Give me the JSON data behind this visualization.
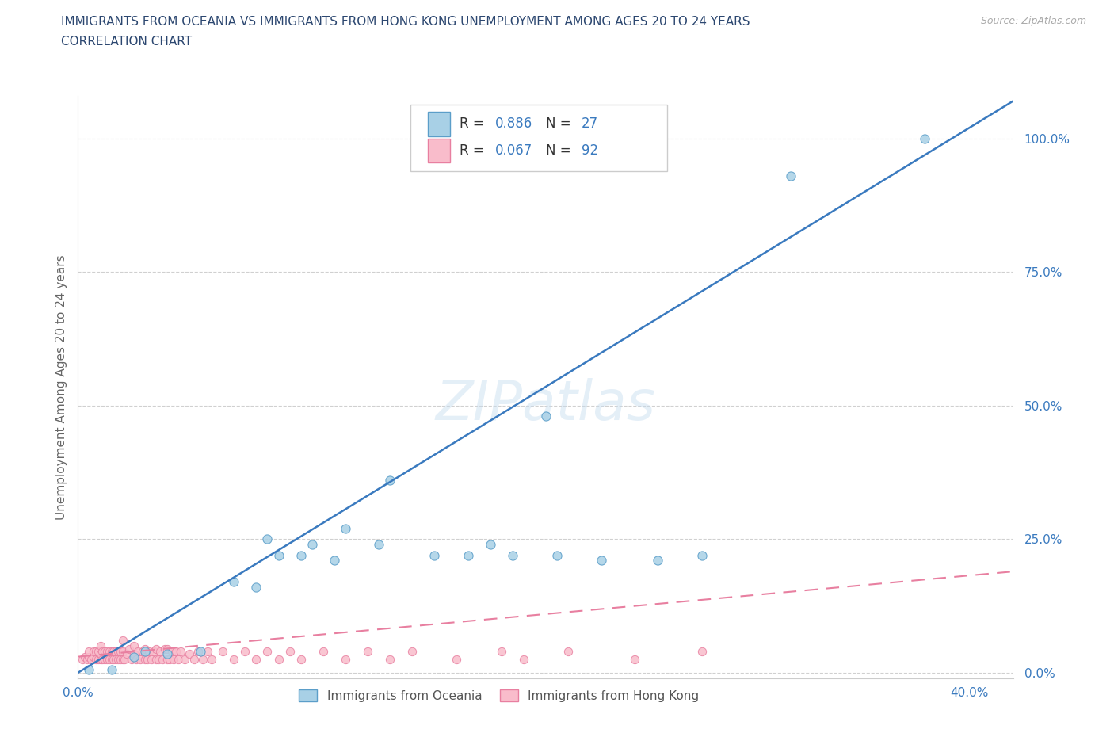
{
  "title_line1": "IMMIGRANTS FROM OCEANIA VS IMMIGRANTS FROM HONG KONG UNEMPLOYMENT AMONG AGES 20 TO 24 YEARS",
  "title_line2": "CORRELATION CHART",
  "source_text": "Source: ZipAtlas.com",
  "ylabel": "Unemployment Among Ages 20 to 24 years",
  "xlim": [
    0.0,
    0.42
  ],
  "ylim": [
    -0.01,
    1.08
  ],
  "yticks": [
    0.0,
    0.25,
    0.5,
    0.75,
    1.0
  ],
  "ytick_labels": [
    "0.0%",
    "25.0%",
    "50.0%",
    "75.0%",
    "100.0%"
  ],
  "xticks": [
    0.0,
    0.1,
    0.2,
    0.3,
    0.4
  ],
  "xtick_labels": [
    "0.0%",
    "",
    "",
    "",
    "40.0%"
  ],
  "oceania_color": "#a8d0e6",
  "hk_color": "#f9bccb",
  "oceania_edge_color": "#5b9ec9",
  "hk_edge_color": "#e87fa0",
  "oceania_line_color": "#3a7abf",
  "hk_line_color": "#e87fa0",
  "legend_R_color": "#3a7abf",
  "background_color": "#ffffff",
  "title_color": "#2c4770",
  "axis_tick_color": "#3a7abf",
  "watermark": "ZIPatlas",
  "oceania_line_slope": 2.55,
  "oceania_line_intercept": 0.0,
  "hk_line_slope": 0.38,
  "hk_line_intercept": 0.03,
  "oceania_scatter_x": [
    0.005,
    0.015,
    0.025,
    0.03,
    0.04,
    0.055,
    0.07,
    0.08,
    0.085,
    0.09,
    0.1,
    0.105,
    0.115,
    0.12,
    0.135,
    0.14,
    0.16,
    0.175,
    0.185,
    0.195,
    0.21,
    0.215,
    0.235,
    0.26,
    0.28,
    0.32,
    0.38
  ],
  "oceania_scatter_y": [
    0.005,
    0.005,
    0.03,
    0.04,
    0.035,
    0.04,
    0.17,
    0.16,
    0.25,
    0.22,
    0.22,
    0.24,
    0.21,
    0.27,
    0.24,
    0.36,
    0.22,
    0.22,
    0.24,
    0.22,
    0.48,
    0.22,
    0.21,
    0.21,
    0.22,
    0.93,
    1.0
  ],
  "hk_scatter_x": [
    0.002,
    0.003,
    0.004,
    0.005,
    0.005,
    0.006,
    0.007,
    0.007,
    0.008,
    0.008,
    0.009,
    0.009,
    0.01,
    0.01,
    0.01,
    0.011,
    0.011,
    0.012,
    0.012,
    0.013,
    0.013,
    0.014,
    0.014,
    0.015,
    0.015,
    0.016,
    0.016,
    0.017,
    0.017,
    0.018,
    0.018,
    0.019,
    0.019,
    0.02,
    0.02,
    0.02,
    0.021,
    0.022,
    0.023,
    0.024,
    0.025,
    0.025,
    0.026,
    0.027,
    0.028,
    0.029,
    0.03,
    0.03,
    0.031,
    0.032,
    0.033,
    0.034,
    0.035,
    0.035,
    0.036,
    0.037,
    0.038,
    0.039,
    0.04,
    0.04,
    0.041,
    0.042,
    0.043,
    0.044,
    0.045,
    0.046,
    0.048,
    0.05,
    0.052,
    0.054,
    0.056,
    0.058,
    0.06,
    0.065,
    0.07,
    0.075,
    0.08,
    0.085,
    0.09,
    0.095,
    0.1,
    0.11,
    0.12,
    0.13,
    0.14,
    0.15,
    0.17,
    0.19,
    0.2,
    0.22,
    0.25,
    0.28
  ],
  "hk_scatter_y": [
    0.025,
    0.03,
    0.025,
    0.03,
    0.04,
    0.025,
    0.03,
    0.04,
    0.025,
    0.04,
    0.025,
    0.04,
    0.025,
    0.035,
    0.05,
    0.025,
    0.04,
    0.025,
    0.04,
    0.025,
    0.04,
    0.025,
    0.04,
    0.025,
    0.04,
    0.025,
    0.04,
    0.025,
    0.04,
    0.025,
    0.04,
    0.025,
    0.04,
    0.025,
    0.04,
    0.06,
    0.025,
    0.035,
    0.045,
    0.025,
    0.035,
    0.05,
    0.025,
    0.04,
    0.025,
    0.04,
    0.025,
    0.045,
    0.025,
    0.04,
    0.025,
    0.04,
    0.025,
    0.045,
    0.025,
    0.04,
    0.025,
    0.045,
    0.025,
    0.045,
    0.025,
    0.04,
    0.025,
    0.04,
    0.025,
    0.04,
    0.025,
    0.035,
    0.025,
    0.04,
    0.025,
    0.04,
    0.025,
    0.04,
    0.025,
    0.04,
    0.025,
    0.04,
    0.025,
    0.04,
    0.025,
    0.04,
    0.025,
    0.04,
    0.025,
    0.04,
    0.025,
    0.04,
    0.025,
    0.04,
    0.025,
    0.04
  ]
}
